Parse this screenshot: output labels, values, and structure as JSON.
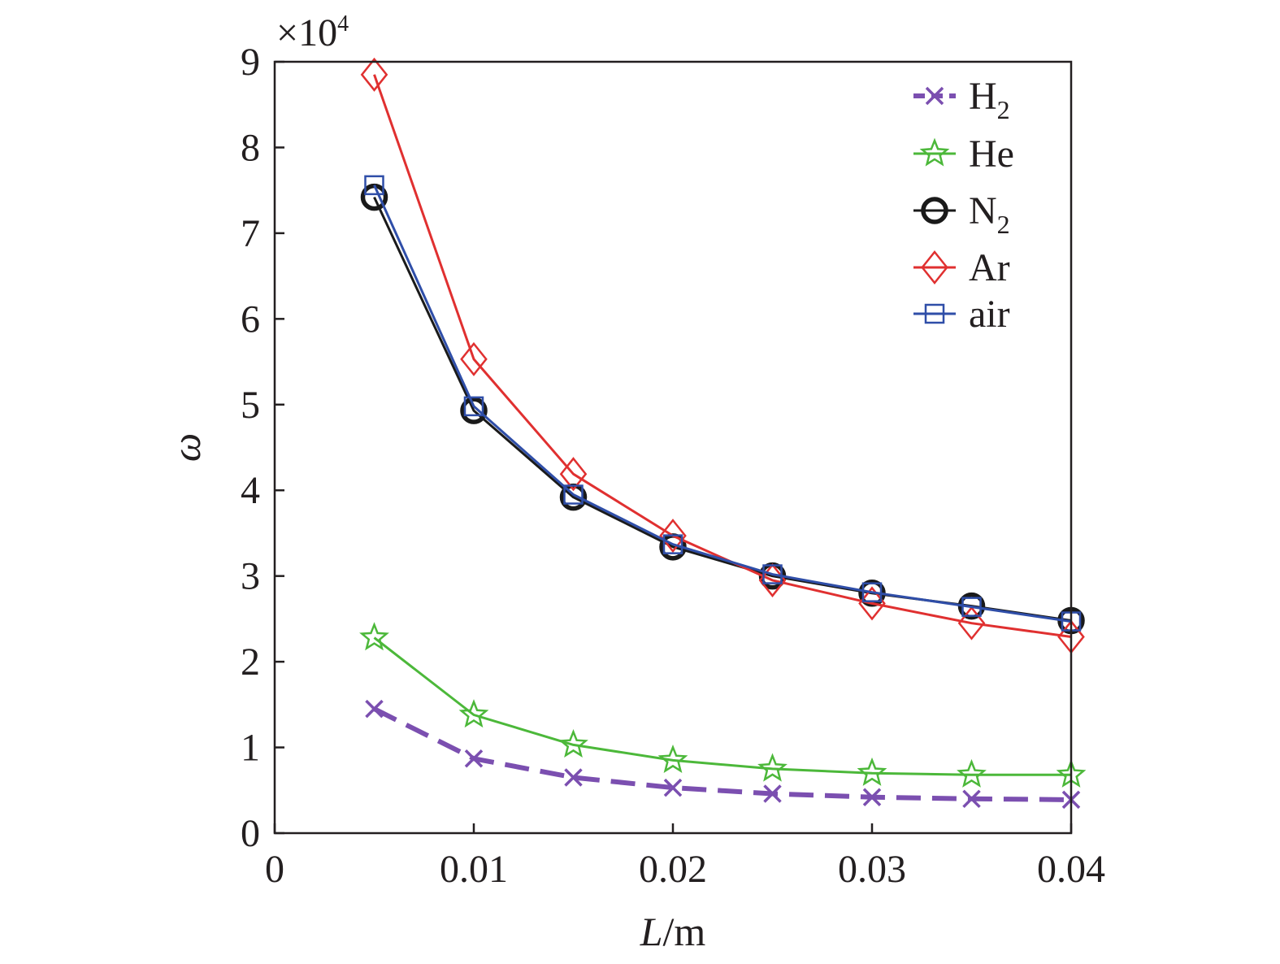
{
  "chart_data": {
    "type": "line",
    "xlabel_italic": "L",
    "xlabel_unit": "/m",
    "ylabel": "ω",
    "y_multiplier": {
      "base": "×10",
      "exponent": "4"
    },
    "xlim": [
      0,
      0.04
    ],
    "ylim": [
      0,
      90000
    ],
    "x_ticks": [
      0,
      0.01,
      0.02,
      0.03,
      0.04
    ],
    "x_tick_labels": [
      "0",
      "0.01",
      "0.02",
      "0.03",
      "0.04"
    ],
    "y_ticks": [
      0,
      10000,
      20000,
      30000,
      40000,
      50000,
      60000,
      70000,
      80000,
      90000
    ],
    "y_tick_labels": [
      "0",
      "1",
      "2",
      "3",
      "4",
      "5",
      "6",
      "7",
      "8",
      "9"
    ],
    "grid": false,
    "legend_position": "top-right",
    "x": [
      0.005,
      0.01,
      0.015,
      0.02,
      0.025,
      0.03,
      0.035,
      0.04
    ],
    "series": [
      {
        "name": "H",
        "subscript": "2",
        "color": "#7b4fb0",
        "marker": "x",
        "dashed": true,
        "values": [
          14500,
          8700,
          6500,
          5300,
          4600,
          4200,
          4000,
          3900
        ]
      },
      {
        "name": "He",
        "subscript": "",
        "color": "#4cb83a",
        "marker": "star",
        "dashed": false,
        "values": [
          22800,
          13800,
          10300,
          8500,
          7500,
          7000,
          6800,
          6800
        ]
      },
      {
        "name": "N",
        "subscript": "2",
        "color": "#1a1a1a",
        "marker": "circle",
        "dashed": false,
        "values": [
          74200,
          49300,
          39200,
          33400,
          30000,
          28000,
          26500,
          24800
        ]
      },
      {
        "name": "Ar",
        "subscript": "",
        "color": "#e03030",
        "marker": "diamond",
        "dashed": false,
        "values": [
          88500,
          55300,
          41900,
          34700,
          29500,
          26800,
          24500,
          22900
        ]
      },
      {
        "name": "air",
        "subscript": "",
        "color": "#2f4ea8",
        "marker": "square",
        "dashed": false,
        "values": [
          75600,
          49800,
          39500,
          33700,
          30200,
          28100,
          26400,
          24700
        ]
      }
    ]
  }
}
